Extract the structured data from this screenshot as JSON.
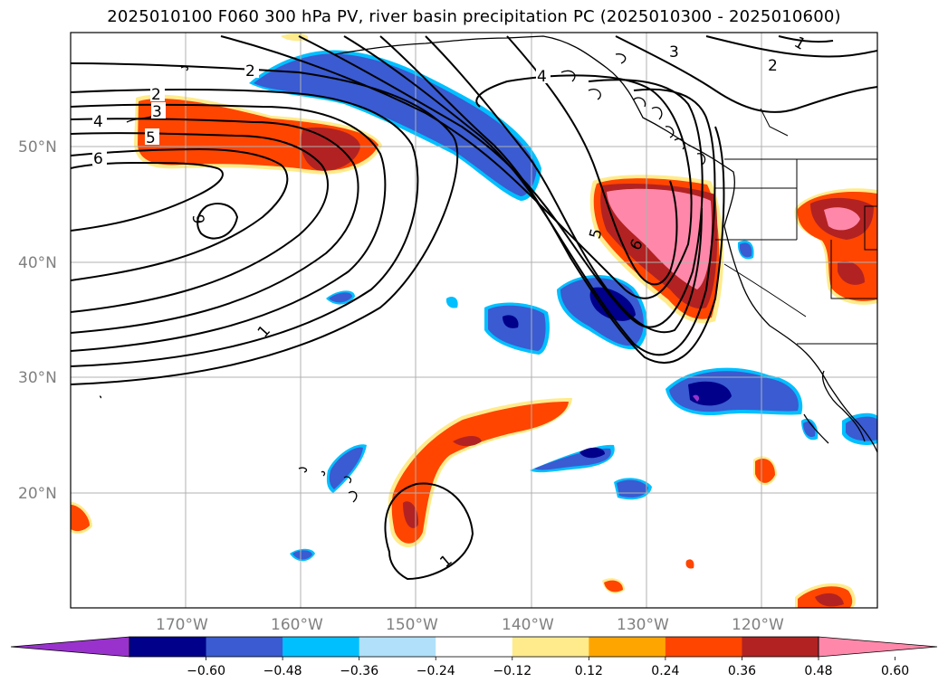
{
  "title": "2025010100 F060 300 hPa PV, river basin precipitation PC (2025010300 - 2025010600)",
  "map": {
    "lon_range": [
      -180,
      -110
    ],
    "lat_range": [
      10,
      60
    ],
    "lat_ticks": [
      {
        "value": 50,
        "label": "50°N"
      },
      {
        "value": 40,
        "label": "40°N"
      },
      {
        "value": 30,
        "label": "30°N"
      },
      {
        "value": 20,
        "label": "20°N"
      }
    ],
    "lon_ticks": [
      {
        "value": -170,
        "label": "170°W"
      },
      {
        "value": -160,
        "label": "160°W"
      },
      {
        "value": -150,
        "label": "150°W"
      },
      {
        "value": -140,
        "label": "140°W"
      },
      {
        "value": -130,
        "label": "130°W"
      },
      {
        "value": -120,
        "label": "120°W"
      }
    ],
    "grid": true
  },
  "pv_contour_labels": [
    "2",
    "2",
    "3",
    "4",
    "5",
    "6",
    "6",
    "1",
    "1",
    "4",
    "3",
    "2",
    "1",
    "5",
    "6"
  ],
  "colorbar": {
    "colors": [
      "#9932cc",
      "#00008b",
      "#3a5bd1",
      "#00bfff",
      "#b0e0fa",
      "#ffffff",
      "#ffeb8c",
      "#ffa500",
      "#ff4500",
      "#b22222",
      "#ff88aa"
    ],
    "ticks": [
      "−0.60",
      "−0.48",
      "−0.36",
      "−0.24",
      "−0.12",
      "0.12",
      "0.24",
      "0.36",
      "0.48",
      "0.60"
    ]
  }
}
